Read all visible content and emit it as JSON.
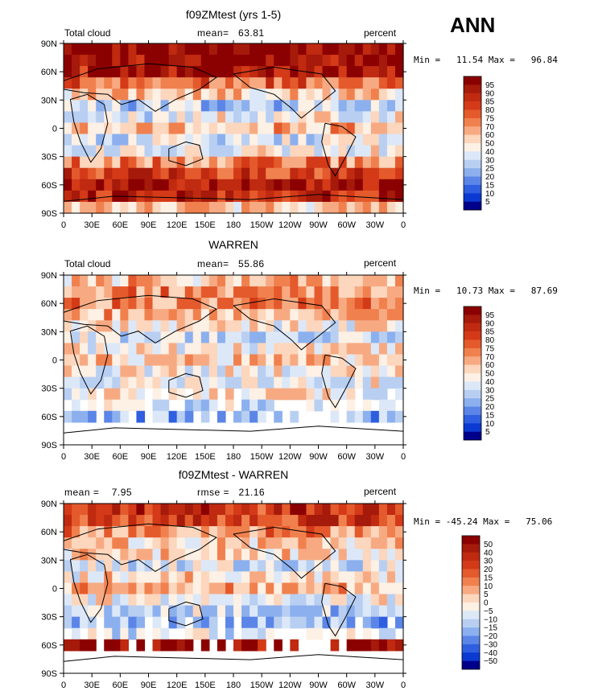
{
  "title": "ANN",
  "chart_data": [
    {
      "type": "heatmap",
      "title": "f09ZMtest (yrs 1-5)",
      "variable_label": "Total cloud",
      "summary_label": "mean=",
      "summary_value": "63.81",
      "units": "percent",
      "min_label": "Min =",
      "min_value": "11.54",
      "max_label": "Max =",
      "max_value": "96.84",
      "x_ticks": [
        "0",
        "30E",
        "60E",
        "90E",
        "120E",
        "150E",
        "180",
        "150W",
        "120W",
        "90W",
        "60W",
        "30W",
        "0"
      ],
      "y_ticks": [
        "90N",
        "60N",
        "30N",
        "0",
        "30S",
        "60S",
        "90S"
      ],
      "colorbar_levels": [
        "95",
        "90",
        "85",
        "80",
        "75",
        "70",
        "60",
        "50",
        "40",
        "30",
        "25",
        "20",
        "15",
        "10",
        "5"
      ],
      "colorbar_colors": [
        "#8b0000",
        "#a51a0a",
        "#bf2a10",
        "#d43a18",
        "#e45a2c",
        "#f0814e",
        "#f7aa82",
        "#fcd6bd",
        "#fdf0e4",
        "#dce8f8",
        "#b8cff2",
        "#8cb0ee",
        "#5b86e8",
        "#2f5fe0",
        "#0b3ad2",
        "#00008b"
      ],
      "field_profile": [
        0.97,
        0.93,
        0.87,
        0.7,
        0.55,
        0.35,
        0.45,
        0.58,
        0.4,
        0.45,
        0.66,
        0.8,
        0.9,
        0.85,
        0.55
      ]
    },
    {
      "type": "heatmap",
      "title": "WARREN",
      "variable_label": "Total cloud",
      "summary_label": "mean=",
      "summary_value": "55.86",
      "units": "percent",
      "min_label": "Min =",
      "min_value": "10.73",
      "max_label": "Max =",
      "max_value": "87.69",
      "x_ticks": [
        "0",
        "30E",
        "60E",
        "90E",
        "120E",
        "150E",
        "180",
        "150W",
        "120W",
        "90W",
        "60W",
        "30W",
        "0"
      ],
      "y_ticks": [
        "90N",
        "60N",
        "30N",
        "0",
        "30S",
        "60S",
        "90S"
      ],
      "colorbar_levels": [
        "95",
        "90",
        "85",
        "80",
        "75",
        "70",
        "60",
        "50",
        "40",
        "30",
        "25",
        "20",
        "15",
        "10",
        "5"
      ],
      "colorbar_colors": [
        "#8b0000",
        "#a51a0a",
        "#bf2a10",
        "#d43a18",
        "#e45a2c",
        "#f0814e",
        "#f7aa82",
        "#fcd6bd",
        "#fdf0e4",
        "#dce8f8",
        "#b8cff2",
        "#8cb0ee",
        "#5b86e8",
        "#2f5fe0",
        "#0b3ad2",
        "#00008b"
      ],
      "field_profile": [
        0.55,
        0.62,
        0.66,
        0.58,
        0.5,
        0.42,
        0.48,
        0.55,
        0.47,
        0.45,
        0.48,
        0.4,
        0.3,
        null,
        null
      ]
    },
    {
      "type": "heatmap",
      "title": "f09ZMtest - WARREN",
      "summary_label": "mean =",
      "summary_value": "7.95",
      "rmse_label": "rmse =",
      "rmse_value": "21.16",
      "units": "percent",
      "min_label": "Min =",
      "min_value": "-45.24",
      "max_label": "Max =",
      "max_value": "75.06",
      "x_ticks": [
        "0",
        "30E",
        "60E",
        "90E",
        "120E",
        "150E",
        "180",
        "150W",
        "120W",
        "90W",
        "60W",
        "30W",
        "0"
      ],
      "y_ticks": [
        "90N",
        "60N",
        "30N",
        "0",
        "30S",
        "60S",
        "90S"
      ],
      "colorbar_levels": [
        "50",
        "40",
        "30",
        "20",
        "15",
        "10",
        "5",
        "0",
        "−5",
        "−10",
        "−15",
        "−20",
        "−30",
        "−40",
        "−50"
      ],
      "colorbar_colors": [
        "#8b0000",
        "#a51a0a",
        "#bf2a10",
        "#d43a18",
        "#e45a2c",
        "#f0814e",
        "#f7aa82",
        "#fcd6bd",
        "#fdf0e4",
        "#dce8f8",
        "#b8cff2",
        "#8cb0ee",
        "#5b86e8",
        "#2f5fe0",
        "#0b3ad2",
        "#00008b"
      ],
      "field_profile": [
        0.82,
        0.78,
        0.64,
        0.55,
        0.52,
        0.42,
        0.5,
        0.58,
        0.45,
        0.38,
        0.32,
        0.4,
        0.95,
        null,
        null
      ]
    }
  ]
}
